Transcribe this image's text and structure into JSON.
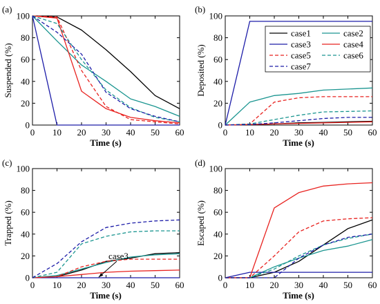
{
  "colors": {
    "case1": "#000000",
    "case2": "#1a9590",
    "case3": "#1c1ca8",
    "case4": "#e8221f",
    "case5": "#e8221f",
    "case6": "#1a9590",
    "case7": "#1c1ca8"
  },
  "legend": {
    "entries": [
      {
        "name": "case1",
        "color": "#000000",
        "dashed": false
      },
      {
        "name": "case2",
        "color": "#1a9590",
        "dashed": false
      },
      {
        "name": "case3",
        "color": "#1c1ca8",
        "dashed": false
      },
      {
        "name": "case4",
        "color": "#e8221f",
        "dashed": false
      },
      {
        "name": "case5",
        "color": "#e8221f",
        "dashed": true
      },
      {
        "name": "case6",
        "color": "#1a9590",
        "dashed": true
      },
      {
        "name": "case7",
        "color": "#1c1ca8",
        "dashed": true
      }
    ]
  },
  "chart_data": [
    {
      "type": "line",
      "panel_label": "(a)",
      "xlabel": "Time (s)",
      "ylabel": "Suspended (%)",
      "xlim": [
        0,
        60
      ],
      "ylim": [
        0,
        100
      ],
      "xticks": [
        0,
        10,
        20,
        30,
        40,
        50,
        60
      ],
      "yticks": [
        0,
        20,
        40,
        60,
        80,
        100
      ],
      "grid": false,
      "series": [
        {
          "name": "case1",
          "dashed": false,
          "x": [
            0,
            10,
            20,
            30,
            40,
            50,
            60
          ],
          "y": [
            100,
            99,
            87,
            69,
            49,
            27,
            15
          ]
        },
        {
          "name": "case2",
          "dashed": false,
          "x": [
            0,
            10,
            20,
            30,
            40,
            50,
            60
          ],
          "y": [
            100,
            77,
            55,
            40,
            24,
            17,
            8
          ]
        },
        {
          "name": "case3",
          "dashed": false,
          "x": [
            0,
            10,
            20,
            30,
            40,
            50,
            60
          ],
          "y": [
            100,
            0,
            0,
            0,
            0,
            0,
            0
          ]
        },
        {
          "name": "case4",
          "dashed": false,
          "x": [
            0,
            10,
            20,
            30,
            40,
            50,
            60
          ],
          "y": [
            100,
            98,
            31,
            15,
            7,
            4,
            2
          ]
        },
        {
          "name": "case5",
          "dashed": true,
          "x": [
            0,
            10,
            20,
            30,
            40,
            50,
            60
          ],
          "y": [
            100,
            99,
            50,
            17,
            5,
            3,
            1
          ]
        },
        {
          "name": "case6",
          "dashed": true,
          "x": [
            0,
            10,
            20,
            30,
            40,
            50,
            60
          ],
          "y": [
            100,
            93,
            60,
            32,
            16,
            7,
            3
          ]
        },
        {
          "name": "case7",
          "dashed": true,
          "x": [
            0,
            10,
            20,
            30,
            40,
            50,
            60
          ],
          "y": [
            100,
            85,
            65,
            30,
            15,
            8,
            3
          ]
        }
      ]
    },
    {
      "type": "line",
      "panel_label": "(b)",
      "xlabel": "Time (s)",
      "ylabel": "Deposited (%)",
      "xlim": [
        0,
        60
      ],
      "ylim": [
        0,
        100
      ],
      "xticks": [
        0,
        10,
        20,
        30,
        40,
        50,
        60
      ],
      "yticks": [
        0,
        20,
        40,
        60,
        80,
        100
      ],
      "grid": false,
      "legend_position": "top-right",
      "series": [
        {
          "name": "case1",
          "dashed": false,
          "x": [
            0,
            10,
            20,
            30,
            40,
            50,
            60
          ],
          "y": [
            0,
            0.5,
            1,
            2,
            2.5,
            3,
            3.5
          ]
        },
        {
          "name": "case2",
          "dashed": false,
          "x": [
            0,
            10,
            20,
            30,
            40,
            50,
            60
          ],
          "y": [
            0,
            21,
            27,
            29,
            32,
            33,
            34
          ]
        },
        {
          "name": "case3",
          "dashed": false,
          "x": [
            0,
            10,
            20,
            30,
            40,
            50,
            60
          ],
          "y": [
            0,
            95,
            95,
            95,
            95,
            95,
            95
          ]
        },
        {
          "name": "case4",
          "dashed": false,
          "x": [
            0,
            10,
            20,
            30,
            40,
            50,
            60
          ],
          "y": [
            0,
            0.5,
            1,
            1.5,
            2,
            2.5,
            3
          ]
        },
        {
          "name": "case5",
          "dashed": true,
          "x": [
            0,
            10,
            20,
            30,
            40,
            50,
            60
          ],
          "y": [
            0,
            1,
            21,
            25,
            26,
            26,
            26
          ]
        },
        {
          "name": "case6",
          "dashed": true,
          "x": [
            0,
            10,
            20,
            30,
            40,
            50,
            60
          ],
          "y": [
            0,
            1,
            5,
            9,
            12,
            12.5,
            13
          ]
        },
        {
          "name": "case7",
          "dashed": true,
          "x": [
            0,
            10,
            20,
            30,
            40,
            50,
            60
          ],
          "y": [
            0,
            0.5,
            2,
            4,
            6,
            7,
            7
          ]
        }
      ]
    },
    {
      "type": "line",
      "panel_label": "(c)",
      "xlabel": "Time (s)",
      "ylabel": "Trapped (%)",
      "xlim": [
        0,
        60
      ],
      "ylim": [
        0,
        100
      ],
      "xticks": [
        0,
        10,
        20,
        30,
        40,
        50,
        60
      ],
      "yticks": [
        0,
        20,
        40,
        60,
        80,
        100
      ],
      "grid": false,
      "annotation": {
        "text": "case3",
        "x": 31,
        "y": 17,
        "arrow_to_x": 27,
        "arrow_to_y": 0.5
      },
      "series": [
        {
          "name": "case1",
          "dashed": false,
          "x": [
            0,
            10,
            20,
            30,
            40,
            50,
            60
          ],
          "y": [
            0,
            1,
            7,
            15,
            18,
            22,
            23
          ]
        },
        {
          "name": "case2",
          "dashed": false,
          "x": [
            0,
            10,
            20,
            30,
            40,
            50,
            60
          ],
          "y": [
            0,
            2,
            8,
            14,
            19,
            21,
            22
          ]
        },
        {
          "name": "case3",
          "dashed": false,
          "x": [
            0,
            10,
            20,
            30,
            40,
            50,
            60
          ],
          "y": [
            0,
            0,
            0,
            0,
            0,
            0,
            0
          ]
        },
        {
          "name": "case4",
          "dashed": false,
          "x": [
            0,
            10,
            20,
            30,
            40,
            50,
            60
          ],
          "y": [
            0,
            1,
            3,
            5,
            6,
            6.5,
            7
          ]
        },
        {
          "name": "case5",
          "dashed": true,
          "x": [
            0,
            10,
            20,
            30,
            40,
            50,
            60
          ],
          "y": [
            0,
            1,
            10,
            15,
            17,
            17,
            17
          ]
        },
        {
          "name": "case6",
          "dashed": true,
          "x": [
            0,
            10,
            20,
            30,
            40,
            50,
            60
          ],
          "y": [
            0,
            5,
            31,
            38,
            42,
            43,
            43
          ]
        },
        {
          "name": "case7",
          "dashed": true,
          "x": [
            0,
            10,
            20,
            30,
            40,
            50,
            60
          ],
          "y": [
            0,
            13,
            33,
            46,
            50,
            52,
            53
          ]
        }
      ]
    },
    {
      "type": "line",
      "panel_label": "(d)",
      "xlabel": "Time (s)",
      "ylabel": "Escaped (%)",
      "xlim": [
        0,
        60
      ],
      "ylim": [
        0,
        100
      ],
      "xticks": [
        0,
        10,
        20,
        30,
        40,
        50,
        60
      ],
      "yticks": [
        0,
        20,
        40,
        60,
        80,
        100
      ],
      "grid": false,
      "series": [
        {
          "name": "case1",
          "dashed": false,
          "x": [
            0,
            10,
            20,
            30,
            40,
            50,
            60
          ],
          "y": [
            0,
            0,
            5,
            15,
            30,
            45,
            53
          ]
        },
        {
          "name": "case2",
          "dashed": false,
          "x": [
            0,
            10,
            20,
            30,
            40,
            50,
            60
          ],
          "y": [
            0,
            0,
            10,
            18,
            25,
            29,
            35
          ]
        },
        {
          "name": "case3",
          "dashed": false,
          "x": [
            0,
            10,
            20,
            30,
            40,
            50,
            60
          ],
          "y": [
            0,
            5,
            5,
            5,
            5,
            5,
            5
          ]
        },
        {
          "name": "case4",
          "dashed": false,
          "x": [
            0,
            10,
            20,
            30,
            40,
            50,
            60
          ],
          "y": [
            0,
            0,
            64,
            78,
            84,
            86,
            87
          ]
        },
        {
          "name": "case5",
          "dashed": true,
          "x": [
            0,
            10,
            20,
            30,
            40,
            50,
            60
          ],
          "y": [
            0,
            0,
            20,
            42,
            52,
            54,
            55
          ]
        },
        {
          "name": "case6",
          "dashed": true,
          "x": [
            0,
            10,
            20,
            30,
            40,
            50,
            60
          ],
          "y": [
            0,
            0,
            8,
            20,
            30,
            36,
            40
          ]
        },
        {
          "name": "case7",
          "dashed": true,
          "x": [
            0,
            10,
            20,
            30,
            40,
            50,
            60
          ],
          "y": [
            0,
            0,
            0,
            18,
            30,
            37,
            40
          ]
        }
      ]
    }
  ]
}
